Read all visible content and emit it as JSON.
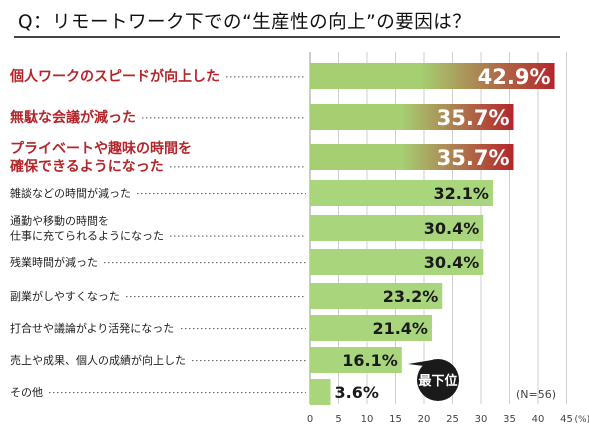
{
  "title": "Q：リモートワーク下での“生産性の向上”の要因は？",
  "colors": {
    "highlight_bar": "#b5252a",
    "highlight_start": "#a6cf72",
    "normal_bar": "#a9d67c",
    "highlight_text": "#b5252a",
    "value_text": "#1a1a1a",
    "callout_fill": "#1a1a1a",
    "callout_text": "#ffffff"
  },
  "chart_data": {
    "type": "bar",
    "orientation": "horizontal",
    "title": "Q：リモートワーク下での“生産性の向上”の要因は？",
    "categories": [
      [
        "個人ワークのスピードが向上した"
      ],
      [
        "無駄な会議が減った"
      ],
      [
        "プライベートや趣味の時間を",
        "確保できるようになった"
      ],
      [
        "雑談などの時間が減った"
      ],
      [
        "通勤や移動の時間を",
        "仕事に充てられるようになった"
      ],
      [
        "残業時間が減った"
      ],
      [
        "副業がしやすくなった"
      ],
      [
        "打合せや議論がより活発になった"
      ],
      [
        "売上や成果、個人の成績が向上した"
      ],
      [
        "その他"
      ]
    ],
    "values": [
      42.9,
      35.7,
      35.7,
      32.1,
      30.4,
      30.4,
      23.2,
      21.4,
      16.1,
      3.6
    ],
    "value_labels": [
      "42.9%",
      "35.7%",
      "35.7%",
      "32.1%",
      "30.4%",
      "30.4%",
      "23.2%",
      "21.4%",
      "16.1%",
      "3.6%"
    ],
    "highlighted": [
      true,
      true,
      true,
      false,
      false,
      false,
      false,
      false,
      false,
      false
    ],
    "xlim": [
      0,
      45
    ],
    "x_ticks": [
      "0",
      "5",
      "10",
      "15",
      "20",
      "25",
      "30",
      "35",
      "40",
      "45"
    ],
    "x_unit": "(%)",
    "grid": true,
    "annotations": {
      "sample_size": "(N=56)",
      "lowest_callout": "最下位"
    }
  }
}
